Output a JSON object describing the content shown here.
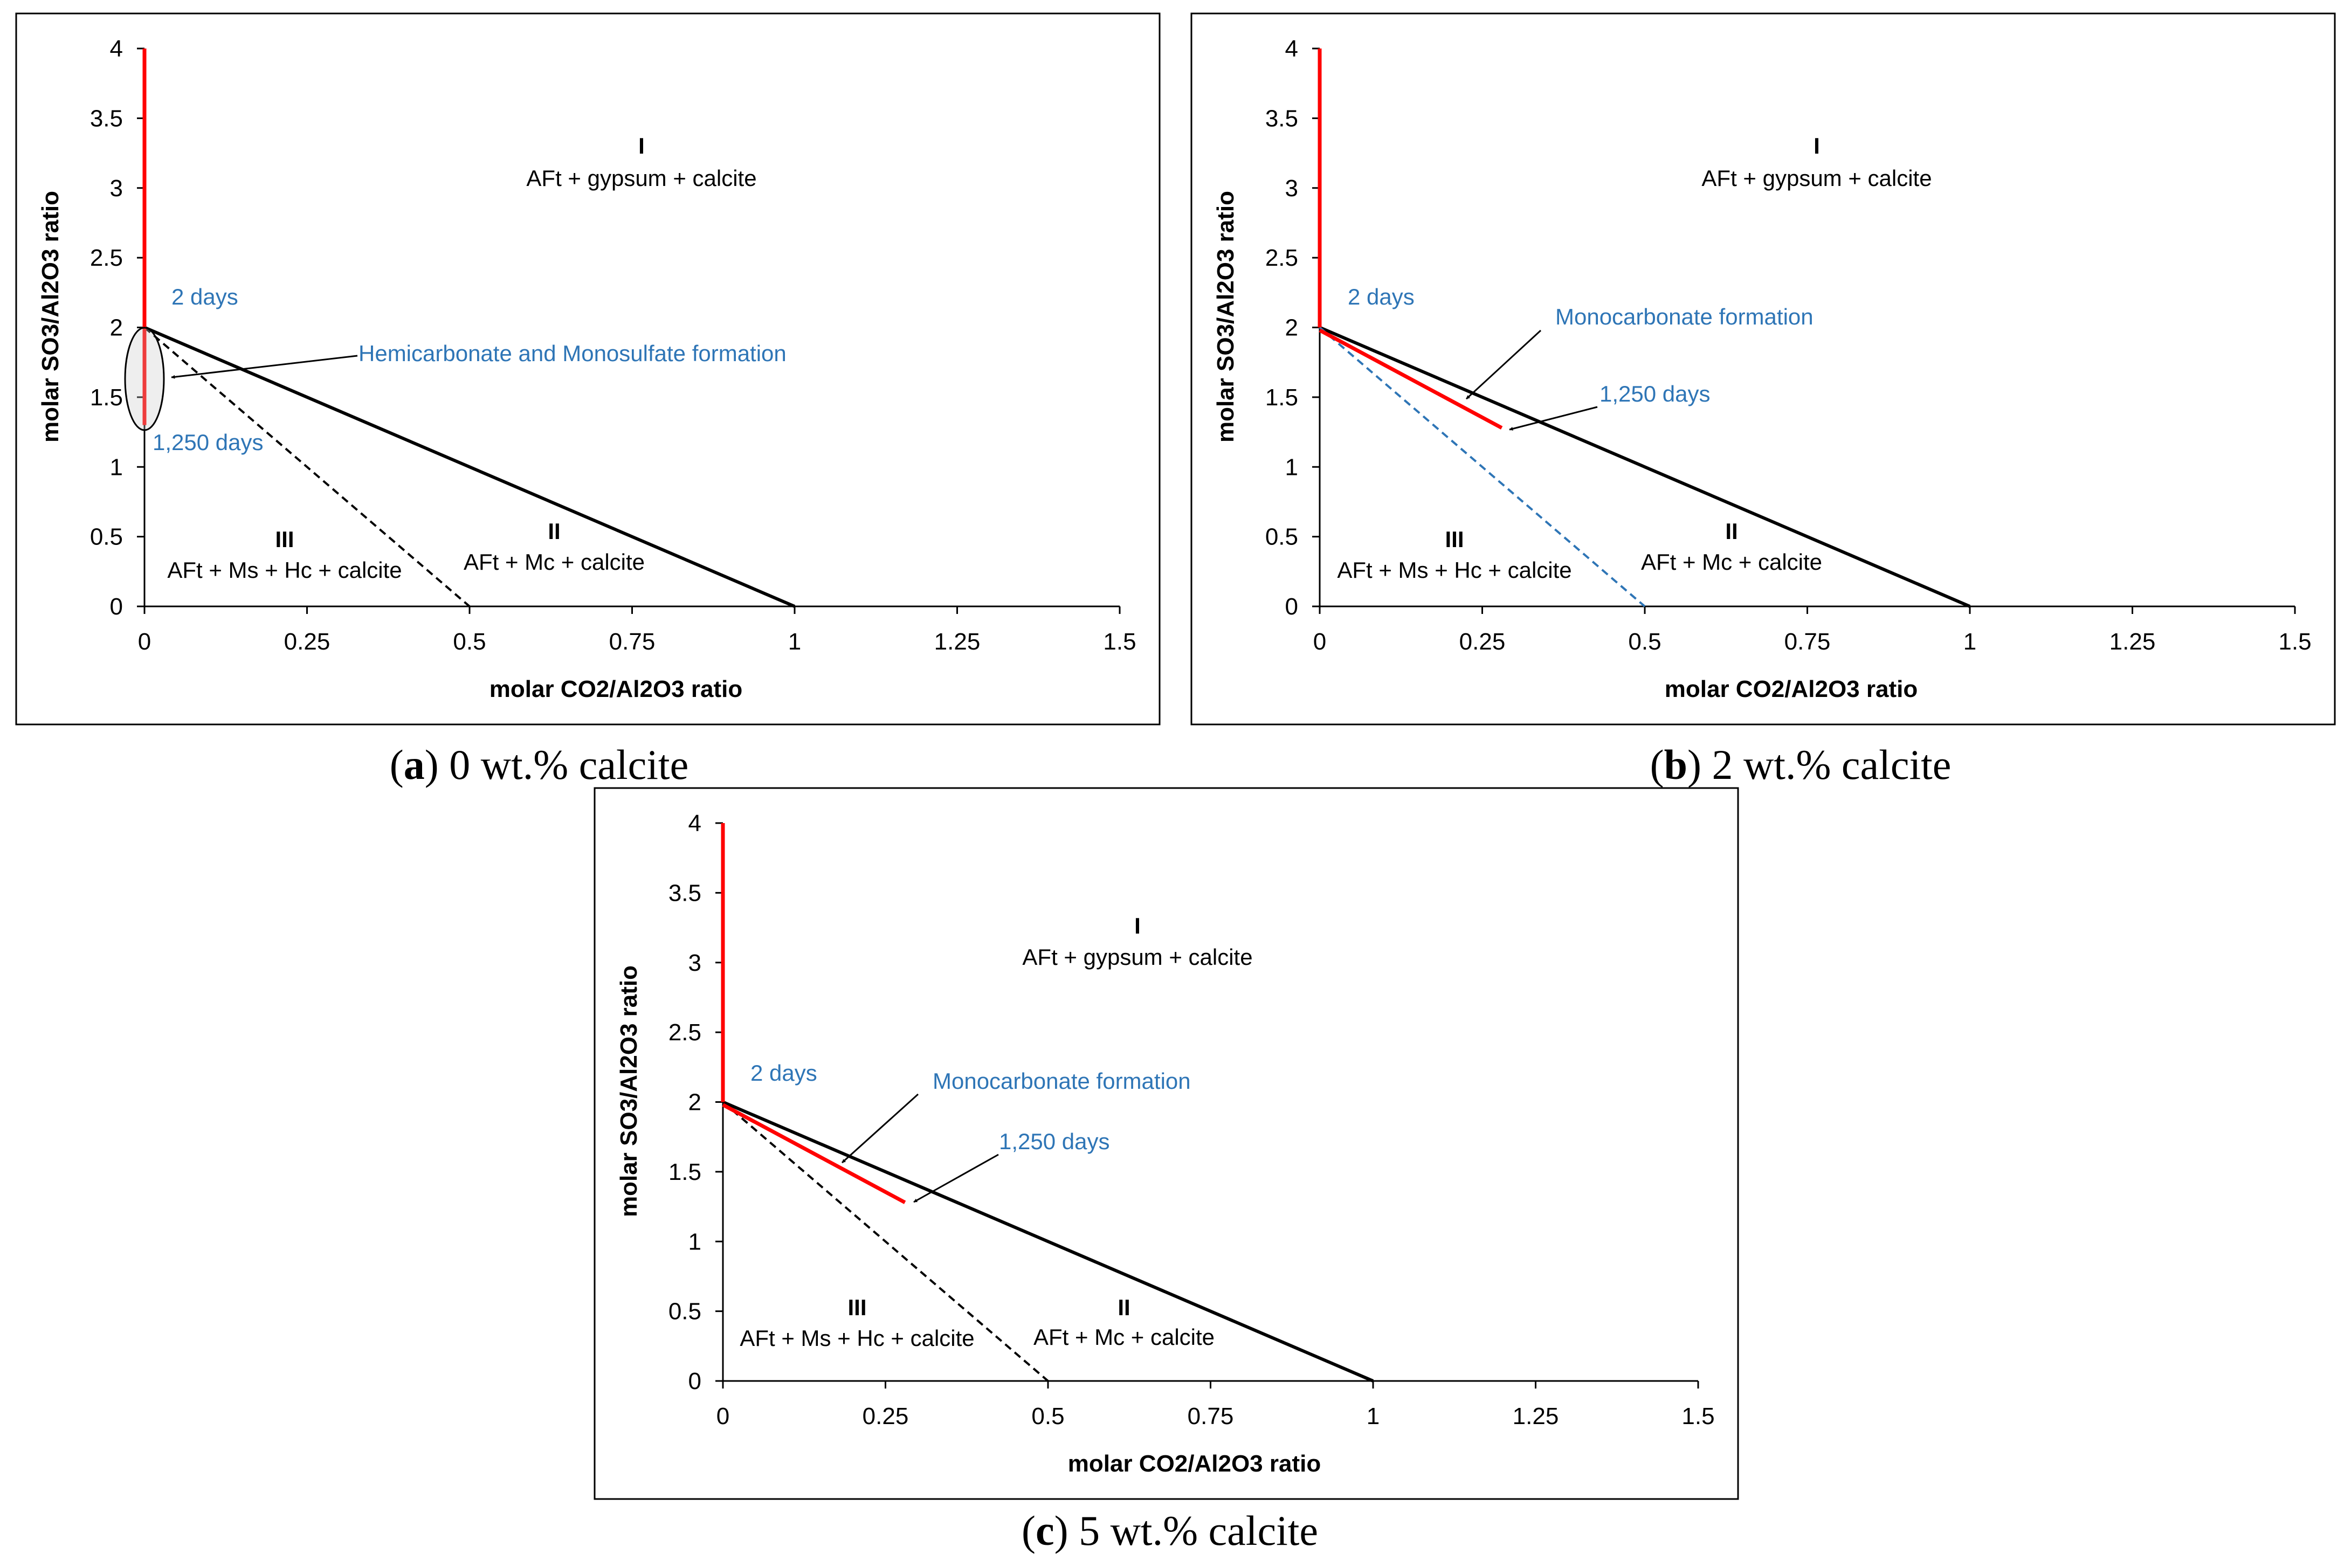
{
  "colors": {
    "boundary": "#000000",
    "trajectory": "#ff0000",
    "annotation_text": "#2e75b6",
    "dashed_blue": "#2e75b6",
    "text": "#000000"
  },
  "panels": [
    {
      "caption_letter": "a",
      "caption_text": " 0 wt.% calcite",
      "chart_data": {
        "type": "line",
        "xlabel": "molar CO2/Al2O3 ratio",
        "ylabel": "molar SO3/Al2O3 ratio",
        "xlim": [
          0,
          1.5
        ],
        "ylim": [
          0,
          4
        ],
        "xticks": [
          "0",
          "0.25",
          "0.5",
          "0.75",
          "1",
          "1.25",
          "1.5"
        ],
        "yticks": [
          "0",
          "0.5",
          "1",
          "1.5",
          "2",
          "2.5",
          "3",
          "3.5",
          "4"
        ],
        "grid": false,
        "series": [
          {
            "style": "solid-black",
            "x": [
              0,
              1
            ],
            "y": [
              2,
              0
            ]
          },
          {
            "style": "dashed-black",
            "x": [
              0,
              0.5
            ],
            "y": [
              2,
              0
            ]
          },
          {
            "style": "red-axis",
            "x": [
              0,
              0
            ],
            "y": [
              4,
              1.3
            ]
          },
          {
            "style": "red-trajectory",
            "x": [],
            "y": []
          }
        ],
        "regions": [
          {
            "numeral": "I",
            "label": "AFt + gypsum + calcite"
          },
          {
            "numeral": "II",
            "label": "AFt + Mc + calcite"
          },
          {
            "numeral": "III",
            "label": "AFt + Ms + Hc + calcite"
          }
        ],
        "annotations": {
          "start": "2 days",
          "end": "1,250 days",
          "formation": "Hemicarbonate and Monosulfate formation"
        }
      }
    },
    {
      "caption_letter": "b",
      "caption_text": " 2 wt.% calcite",
      "chart_data": {
        "type": "line",
        "xlabel": "molar CO2/Al2O3 ratio",
        "ylabel": "molar SO3/Al2O3 ratio",
        "xlim": [
          0,
          1.5
        ],
        "ylim": [
          0,
          4
        ],
        "xticks": [
          "0",
          "0.25",
          "0.5",
          "0.75",
          "1",
          "1.25",
          "1.5"
        ],
        "yticks": [
          "0",
          "0.5",
          "1",
          "1.5",
          "2",
          "2.5",
          "3",
          "3.5",
          "4"
        ],
        "grid": false,
        "series": [
          {
            "style": "solid-black",
            "x": [
              0,
              1
            ],
            "y": [
              2,
              0
            ]
          },
          {
            "style": "dashed-blue",
            "x": [
              0,
              0.5
            ],
            "y": [
              2,
              0
            ]
          },
          {
            "style": "red-axis",
            "x": [
              0,
              0
            ],
            "y": [
              4,
              2
            ]
          },
          {
            "style": "red-trajectory",
            "x": [
              0,
              0.28
            ],
            "y": [
              1.98,
              1.28
            ]
          }
        ],
        "regions": [
          {
            "numeral": "I",
            "label": "AFt + gypsum + calcite"
          },
          {
            "numeral": "II",
            "label": "AFt + Mc + calcite"
          },
          {
            "numeral": "III",
            "label": "AFt + Ms + Hc + calcite"
          }
        ],
        "annotations": {
          "start": "2 days",
          "end": "1,250 days",
          "formation": "Monocarbonate formation"
        }
      }
    },
    {
      "caption_letter": "c",
      "caption_text": " 5 wt.% calcite",
      "chart_data": {
        "type": "line",
        "xlabel": "molar CO2/Al2O3 ratio",
        "ylabel": "molar SO3/Al2O3 ratio",
        "xlim": [
          0,
          1.5
        ],
        "ylim": [
          0,
          4
        ],
        "xticks": [
          "0",
          "0.25",
          "0.5",
          "0.75",
          "1",
          "1.25",
          "1.5"
        ],
        "yticks": [
          "0",
          "0.5",
          "1",
          "1.5",
          "2",
          "2.5",
          "3",
          "3.5",
          "4"
        ],
        "grid": false,
        "series": [
          {
            "style": "solid-black",
            "x": [
              0,
              1
            ],
            "y": [
              2,
              0
            ]
          },
          {
            "style": "dashed-black",
            "x": [
              0,
              0.5
            ],
            "y": [
              2,
              0
            ]
          },
          {
            "style": "red-axis",
            "x": [
              0,
              0
            ],
            "y": [
              4,
              2
            ]
          },
          {
            "style": "red-trajectory",
            "x": [
              0,
              0.28
            ],
            "y": [
              1.98,
              1.28
            ]
          }
        ],
        "regions": [
          {
            "numeral": "I",
            "label": "AFt + gypsum + calcite"
          },
          {
            "numeral": "II",
            "label": "AFt + Mc + calcite"
          },
          {
            "numeral": "III",
            "label": "AFt + Ms + Hc + calcite"
          }
        ],
        "annotations": {
          "start": "2 days",
          "end": "1,250 days",
          "formation": "Monocarbonate formation"
        }
      }
    }
  ]
}
